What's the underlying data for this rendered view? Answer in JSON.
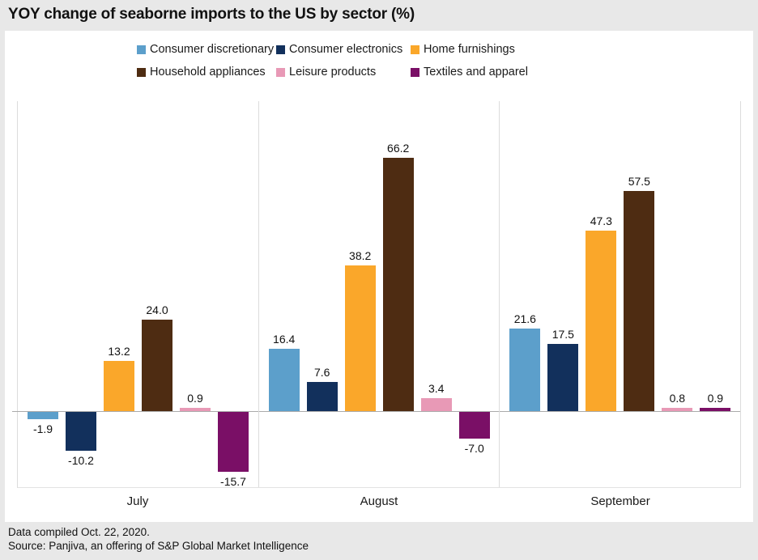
{
  "footer": {
    "line1": "Data compiled Oct. 22, 2020.",
    "line2": "Source: Panjiva, an offering of S&P Global Market Intelligence"
  },
  "colors": {
    "page_background": "#E8E8E8",
    "panel_background": "#FFFFFF",
    "zero_line": "#ABABAB",
    "panel_divider": "#DCDCDC"
  },
  "chart_data": {
    "type": "bar",
    "title": "YOY change of seaborne imports to the US by sector (%)",
    "categories": [
      "July",
      "August",
      "September"
    ],
    "series": [
      {
        "name": "Consumer discretionary",
        "color": "#5C9FCB",
        "values": [
          -1.9,
          16.4,
          21.6
        ]
      },
      {
        "name": "Consumer electronics",
        "color": "#12305C",
        "values": [
          -10.2,
          7.6,
          17.5
        ]
      },
      {
        "name": "Home furnishings",
        "color": "#FAA72A",
        "values": [
          13.2,
          38.2,
          47.3
        ]
      },
      {
        "name": "Household appliances",
        "color": "#4E2C12",
        "values": [
          24.0,
          66.2,
          57.5
        ]
      },
      {
        "name": "Leisure products",
        "color": "#E899B6",
        "values": [
          0.9,
          3.4,
          0.8
        ]
      },
      {
        "name": "Textiles and apparel",
        "color": "#7A0F66",
        "values": [
          -15.7,
          -7.0,
          0.9
        ]
      }
    ],
    "ylim": [
      -20,
      81
    ],
    "grid": false,
    "legend_position": "top",
    "value_labels": "one decimal, above positive bars, below negative bars",
    "xlabel": "",
    "ylabel": ""
  }
}
